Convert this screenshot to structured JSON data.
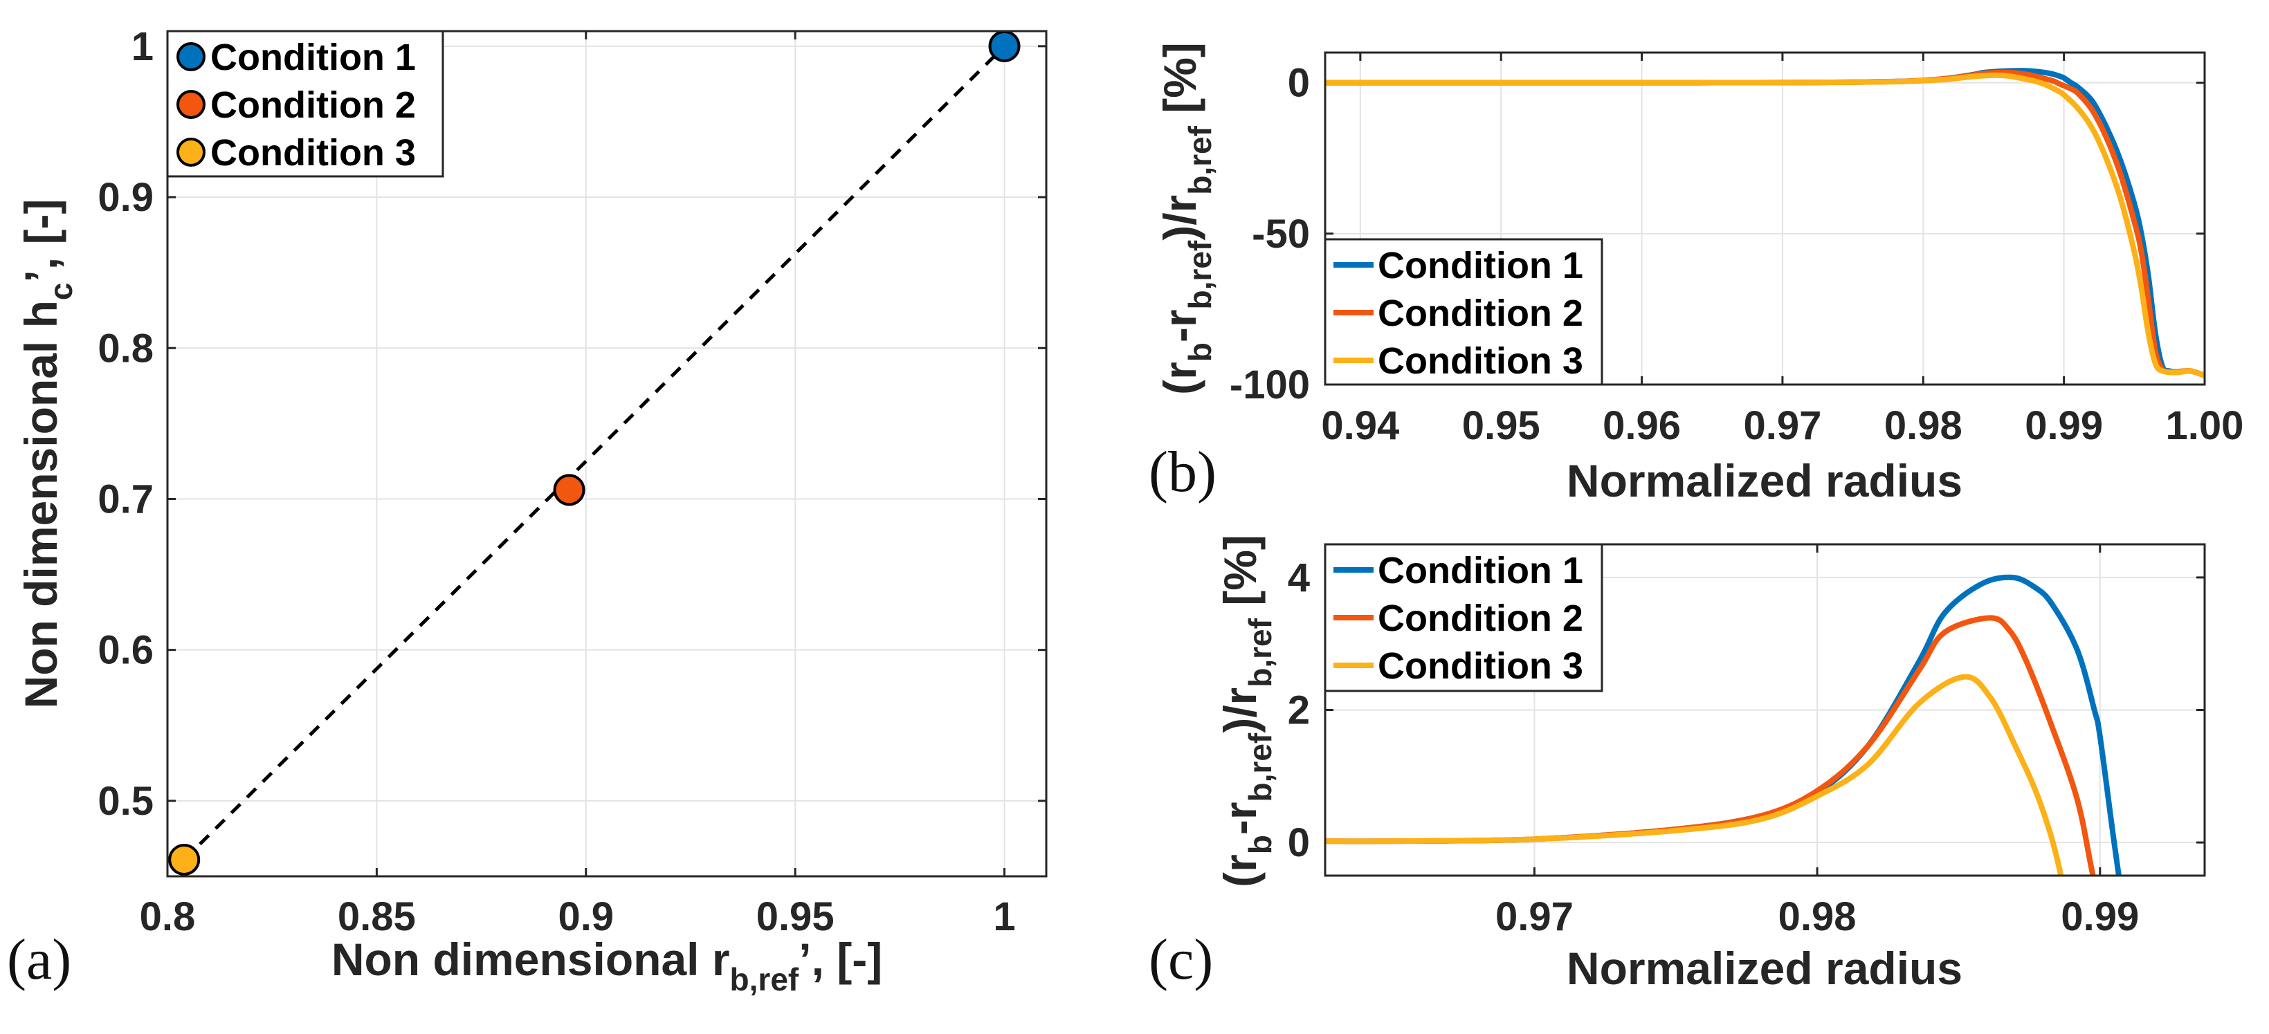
{
  "chart_data": [
    {
      "panel_label": "(a)",
      "type": "scatter",
      "xlabel": {
        "main": "Non dimensional r",
        "sub": "b,ref",
        "tail": "’, [-]"
      },
      "ylabel": {
        "main": "Non dimensional h",
        "sub": "c",
        "tail": "’, [-]"
      },
      "xlim": [
        0.8,
        1.01
      ],
      "ylim": [
        0.45,
        1.01
      ],
      "xticks": [
        0.8,
        0.85,
        0.9,
        0.95,
        1
      ],
      "xtick_labels": [
        "0.8",
        "0.85",
        "0.9",
        "0.95",
        "1"
      ],
      "yticks": [
        0.5,
        0.6,
        0.7,
        0.8,
        0.9,
        1
      ],
      "ytick_labels": [
        "0.5",
        "0.6",
        "0.7",
        "0.8",
        "0.9",
        "1"
      ],
      "grid": true,
      "legend_position": "top-left",
      "fit_line": {
        "style": "dashed",
        "color": "#000000"
      },
      "series": [
        {
          "name": "Condition 1",
          "color": "#0072BD",
          "x": [
            1.0
          ],
          "y": [
            1.0
          ]
        },
        {
          "name": "Condition 2",
          "color": "#F2560F",
          "x": [
            0.896
          ],
          "y": [
            0.706
          ]
        },
        {
          "name": "Condition 3",
          "color": "#FBB117",
          "x": [
            0.804
          ],
          "y": [
            0.461
          ]
        }
      ]
    },
    {
      "panel_label": "(b)",
      "type": "line",
      "xlabel": {
        "main": "Normalized radius"
      },
      "ylabel": {
        "p1": "(r",
        "s1": "b",
        "p2": "-r",
        "s2": "b,ref",
        "p3": ")/r",
        "s3": "b,ref",
        "p4": " [%]"
      },
      "xlim": [
        0.9375,
        1.0
      ],
      "ylim": [
        -100,
        10
      ],
      "xticks": [
        0.94,
        0.95,
        0.96,
        0.97,
        0.98,
        0.99,
        1.0
      ],
      "xtick_labels": [
        "0.94",
        "0.95",
        "0.96",
        "0.97",
        "0.98",
        "0.99",
        "1.00"
      ],
      "yticks": [
        -100,
        -50,
        0
      ],
      "ytick_labels": [
        "-100",
        "-50",
        "0"
      ],
      "grid": true,
      "legend_position": "bottom-left",
      "series": [
        {
          "name": "Condition 1",
          "color": "#0072BD",
          "x": [
            0.9375,
            0.96,
            0.965,
            0.97,
            0.975,
            0.978,
            0.98,
            0.9818,
            0.9836,
            0.9845,
            0.9869,
            0.9883,
            0.9892,
            0.9898,
            0.99,
            0.9905,
            0.991,
            0.992,
            0.993,
            0.994,
            0.995,
            0.9955,
            0.996,
            0.9965,
            0.997,
            0.9975,
            0.998,
            0.999,
            1.0
          ],
          "y": [
            0,
            0.01,
            0.02,
            0.05,
            0.2,
            0.4,
            0.75,
            1.46,
            2.73,
            3.46,
            4.0,
            3.6,
            2.9,
            2.0,
            1.6,
            0,
            -1.5,
            -6,
            -14.5,
            -25.5,
            -40,
            -50,
            -64,
            -83,
            -94,
            -95.5,
            -95.8,
            -95.5,
            -97
          ]
        },
        {
          "name": "Condition 2",
          "color": "#F2560F",
          "x": [
            0.9375,
            0.96,
            0.965,
            0.97,
            0.975,
            0.978,
            0.98,
            0.9818,
            0.9836,
            0.9845,
            0.9861,
            0.9874,
            0.9883,
            0.9892,
            0.98975,
            0.9905,
            0.991,
            0.992,
            0.993,
            0.994,
            0.995,
            0.9955,
            0.996,
            0.9965,
            0.997,
            0.9975,
            0.998,
            0.999,
            1.0
          ],
          "y": [
            0,
            0.01,
            0.02,
            0.05,
            0.2,
            0.4,
            0.78,
            1.46,
            2.6,
            3.17,
            3.39,
            2.73,
            1.75,
            0.64,
            -0.5,
            -2,
            -3.5,
            -9,
            -18,
            -30,
            -46,
            -56,
            -72,
            -89,
            -95,
            -95.8,
            -95.8,
            -95.5,
            -97
          ]
        },
        {
          "name": "Condition 3",
          "color": "#FBB117",
          "x": [
            0.9375,
            0.96,
            0.965,
            0.97,
            0.975,
            0.978,
            0.98,
            0.9818,
            0.9836,
            0.9852,
            0.98612,
            0.987,
            0.9879,
            0.98862,
            0.9895,
            0.99,
            0.991,
            0.992,
            0.993,
            0.994,
            0.995,
            0.9955,
            0.996,
            0.9965,
            0.997,
            0.998,
            0.999,
            1.0
          ],
          "y": [
            0,
            0.01,
            0.02,
            0.05,
            0.18,
            0.35,
            0.7,
            1.18,
            2.1,
            2.5,
            2.19,
            1.46,
            0.58,
            -0.5,
            -2.5,
            -4,
            -8.5,
            -15,
            -25,
            -38,
            -56,
            -68,
            -83,
            -93,
            -95.5,
            -96,
            -95.5,
            -97
          ]
        }
      ]
    },
    {
      "panel_label": "(c)",
      "type": "line",
      "xlabel": {
        "main": "Normalized radius"
      },
      "ylabel": {
        "p1": "(r",
        "s1": "b",
        "p2": "-r",
        "s2": "b,ref",
        "p3": ")/r",
        "s3": "b,ref",
        "p4": " [%]"
      },
      "xlim": [
        0.9626,
        0.9937
      ],
      "ylim": [
        -0.5,
        4.5
      ],
      "xticks": [
        0.97,
        0.98,
        0.99
      ],
      "xtick_labels": [
        "0.97",
        "0.98",
        "0.99"
      ],
      "yticks": [
        0,
        2,
        4
      ],
      "ytick_labels": [
        "0",
        "2",
        "4"
      ],
      "grid": true,
      "legend_position": "top-left",
      "series": [
        {
          "name": "Condition 1",
          "color": "#0072BD",
          "x": [
            0.9626,
            0.965,
            0.97,
            0.975,
            0.978,
            0.98,
            0.9818,
            0.9836,
            0.9845,
            0.9858,
            0.9869,
            0.9877,
            0.9883,
            0.9892,
            0.9898,
            0.99,
            0.9905,
            0.991
          ],
          "y": [
            0.02,
            0.02,
            0.05,
            0.2,
            0.4,
            0.75,
            1.46,
            2.73,
            3.46,
            3.9,
            4.0,
            3.85,
            3.6,
            2.9,
            2.0,
            1.6,
            0,
            -1.5
          ]
        },
        {
          "name": "Condition 2",
          "color": "#F2560F",
          "x": [
            0.9626,
            0.965,
            0.97,
            0.975,
            0.978,
            0.98,
            0.9818,
            0.9836,
            0.9845,
            0.9861,
            0.9868,
            0.9874,
            0.9883,
            0.9892,
            0.98975,
            0.9905
          ],
          "y": [
            0.02,
            0.02,
            0.05,
            0.2,
            0.4,
            0.78,
            1.46,
            2.6,
            3.17,
            3.39,
            3.2,
            2.73,
            1.75,
            0.64,
            -0.5,
            -2
          ]
        },
        {
          "name": "Condition 3",
          "color": "#FBB117",
          "x": [
            0.9626,
            0.965,
            0.97,
            0.975,
            0.978,
            0.98,
            0.9818,
            0.9836,
            0.9852,
            0.98612,
            0.987,
            0.9879,
            0.98862,
            0.9895
          ],
          "y": [
            0.02,
            0.02,
            0.05,
            0.18,
            0.35,
            0.7,
            1.18,
            2.1,
            2.5,
            2.19,
            1.46,
            0.58,
            -0.5,
            -2.5
          ]
        }
      ]
    }
  ]
}
